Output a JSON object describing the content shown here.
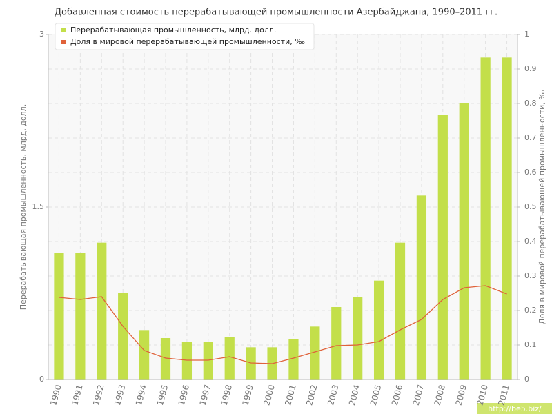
{
  "chart_data": {
    "type": "bar",
    "title": "Добавленная стоимость перерабатывающей промышленности Азербайджана, 1990–2011 гг.",
    "ylabel": "Перерабатывающая промышленность, млрд. долл.",
    "y2label": "Доля в мировой перерабатывающей промышленности, ‰",
    "categories": [
      "1990",
      "1991",
      "1992",
      "1993",
      "1994",
      "1995",
      "1996",
      "1997",
      "1998",
      "1999",
      "2000",
      "2001",
      "2002",
      "2003",
      "2004",
      "2005",
      "2006",
      "2007",
      "2008",
      "2009",
      "2010",
      "2011"
    ],
    "series": [
      {
        "name": "Перерабатывающая промышленность, млрд. долл.",
        "color": "#c3df4a",
        "values": [
          1.1,
          1.1,
          1.19,
          0.75,
          0.43,
          0.36,
          0.33,
          0.33,
          0.37,
          0.28,
          0.28,
          0.35,
          0.46,
          0.63,
          0.72,
          0.86,
          1.19,
          1.6,
          2.3,
          2.4,
          2.8,
          2.8
        ]
      },
      {
        "name": "Доля в мировой перерабатывающей промышленности, ‰",
        "color": "#e0623a",
        "type": "line",
        "axis": "y2",
        "values": [
          0.238,
          0.232,
          0.24,
          0.154,
          0.084,
          0.062,
          0.056,
          0.056,
          0.066,
          0.048,
          0.046,
          0.062,
          0.08,
          0.098,
          0.1,
          0.11,
          0.144,
          0.174,
          0.232,
          0.266,
          0.272,
          0.248
        ]
      }
    ],
    "ylim": [
      0,
      3
    ],
    "yticks": [
      0,
      1.5,
      3
    ],
    "y2lim": [
      0,
      1
    ],
    "y2ticks": [
      0,
      0.1,
      0.2,
      0.3,
      0.4,
      0.5,
      0.6,
      0.7,
      0.8,
      0.9,
      1
    ],
    "grid": true,
    "legend": "top-left",
    "watermark": "http://be5.biz/"
  }
}
